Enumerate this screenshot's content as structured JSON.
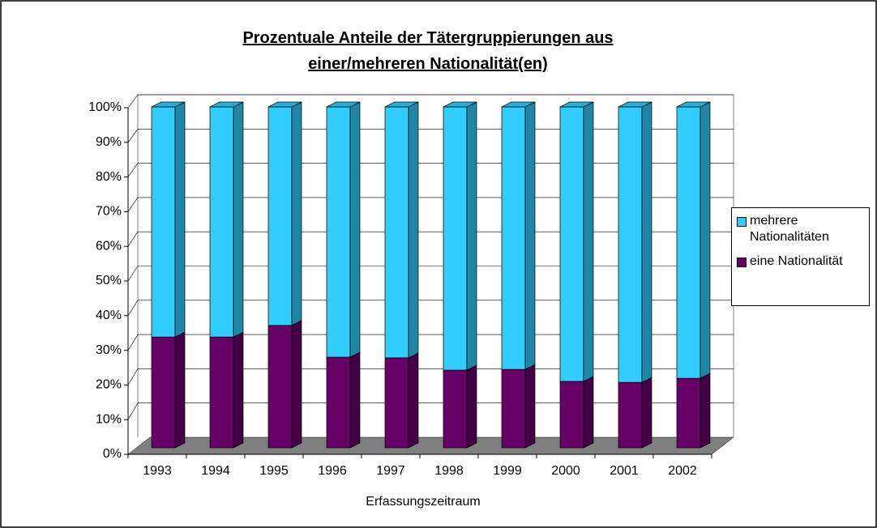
{
  "chart_data": {
    "type": "stacked_bar_3d",
    "title": "Prozentuale Anteile der Tätergruppierungen aus einer/mehreren Nationalität(en)",
    "x_label": "Erfassungszeitraum",
    "categories": [
      "1993",
      "1994",
      "1995",
      "1996",
      "1997",
      "1998",
      "1999",
      "2000",
      "2001",
      "2002"
    ],
    "series": [
      {
        "name": "mehrere Nationalitäten",
        "color": "#33ccff",
        "values": [
          67.5,
          67.5,
          64.1,
          73.4,
          73.6,
          77.2,
          77,
          80.5,
          80.8,
          79.6
        ]
      },
      {
        "name": "eine Nationalität",
        "color": "#660066",
        "values": [
          32.5,
          32.5,
          35.9,
          26.6,
          26.4,
          22.8,
          23,
          19.5,
          19.2,
          20.4
        ]
      }
    ],
    "ylim": [
      0,
      100
    ],
    "yticks": [
      {
        "value": 0,
        "label": "0%"
      },
      {
        "value": 10,
        "label": "10%"
      },
      {
        "value": 20,
        "label": "20%"
      },
      {
        "value": 30,
        "label": "30%"
      },
      {
        "value": 40,
        "label": "40%"
      },
      {
        "value": 50,
        "label": "50%"
      },
      {
        "value": 60,
        "label": "60%"
      },
      {
        "value": 70,
        "label": "70%"
      },
      {
        "value": 80,
        "label": "80%"
      },
      {
        "value": 90,
        "label": "90%"
      },
      {
        "value": 100,
        "label": "100%"
      }
    ],
    "grid": true,
    "legend": "right"
  }
}
